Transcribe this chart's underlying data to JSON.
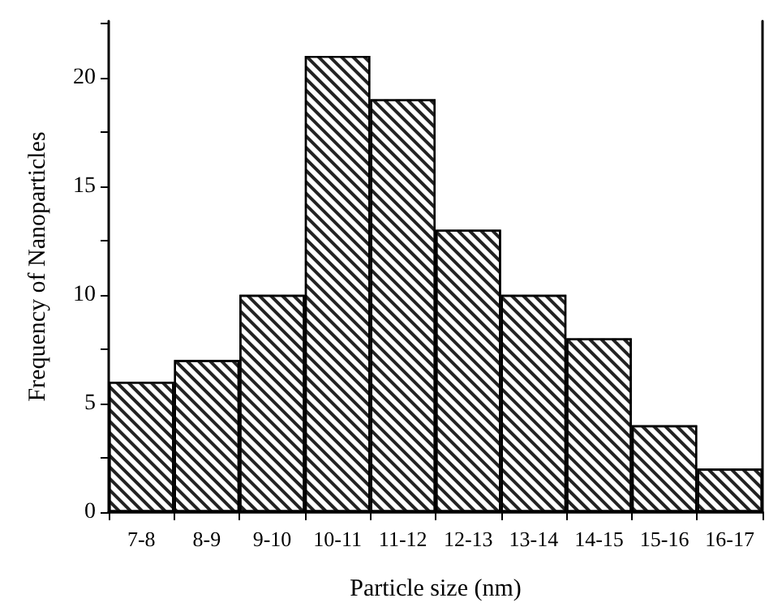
{
  "chart_data": {
    "type": "bar",
    "xlabel": "Particle size (nm)",
    "ylabel": "Frequency of Nanoparticles",
    "categories": [
      "7-8",
      "8-9",
      "9-10",
      "10-11",
      "11-12",
      "12-13",
      "13-14",
      "14-15",
      "15-16",
      "16-17"
    ],
    "values": [
      6,
      7,
      10,
      21,
      19,
      13,
      10,
      8,
      4,
      2
    ],
    "color": "#ffffff",
    "ylim": [
      0,
      22.6
    ],
    "yticks": [
      0,
      {
        "value": 2.5,
        "label": null
      },
      5,
      {
        "value": 7.5,
        "label": null
      },
      10,
      {
        "value": 12.5,
        "label": null
      },
      15,
      {
        "value": 17.5,
        "label": null
      },
      20,
      {
        "value": 22.5,
        "label": null
      }
    ],
    "grid": false
  }
}
